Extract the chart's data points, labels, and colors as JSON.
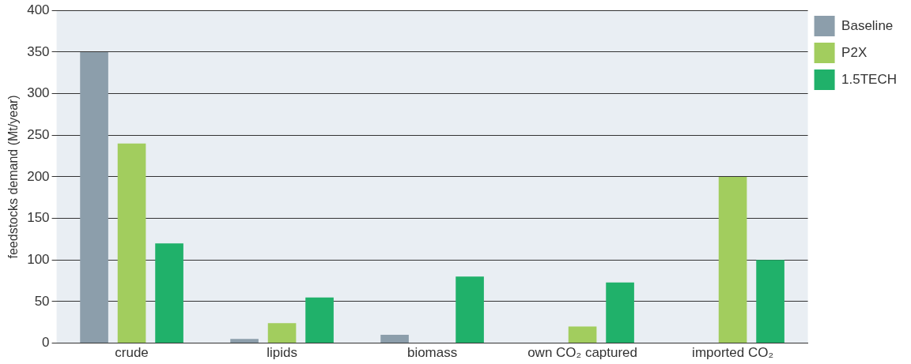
{
  "chart_data": {
    "type": "bar",
    "ylabel": "feedstocks demand (Mt/year)",
    "categories": [
      "crude",
      "lipids",
      "biomass",
      "own CO₂ captured",
      "imported CO₂"
    ],
    "series": [
      {
        "name": "Baseline",
        "color": "#8c9eab",
        "values": [
          350,
          5,
          10,
          null,
          null
        ]
      },
      {
        "name": "P2X",
        "color": "#a2cd5e",
        "values": [
          240,
          24,
          null,
          20,
          200
        ]
      },
      {
        "name": "1.5TECH",
        "color": "#20b16a",
        "values": [
          120,
          55,
          80,
          73,
          100
        ]
      }
    ],
    "ylim": [
      0,
      400
    ],
    "yticks": [
      0,
      50,
      100,
      150,
      200,
      250,
      300,
      350,
      400
    ],
    "grid": "y",
    "legend": "top right"
  }
}
